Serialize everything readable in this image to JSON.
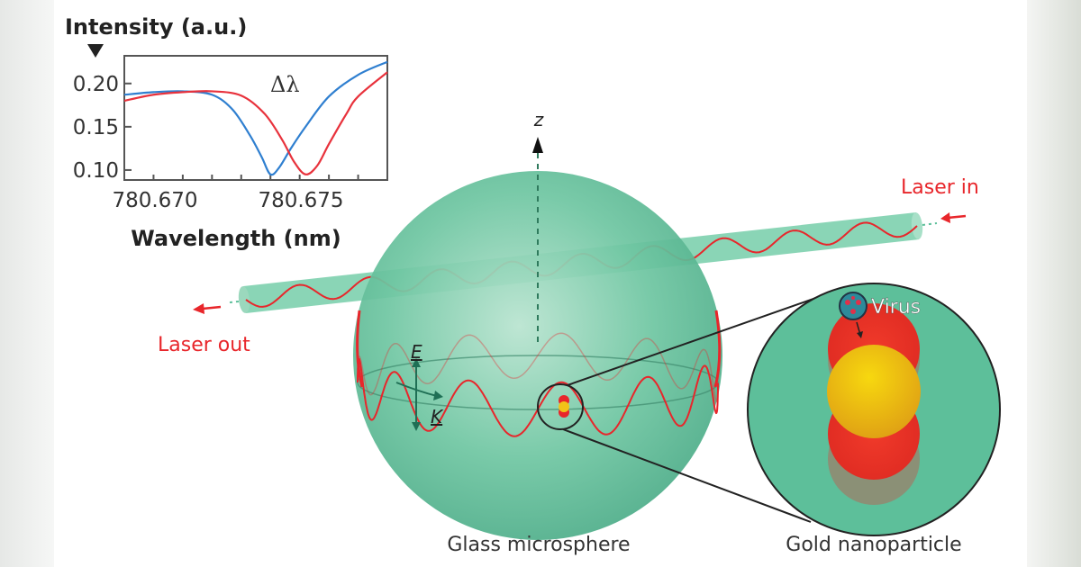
{
  "colors": {
    "sphere": "#5dbf9a",
    "laser": "#e8262b",
    "blue_curve": "#2f7fd0",
    "red_curve": "#e8323c",
    "gold": "#f2c318",
    "text": "#222222"
  },
  "chart_data": {
    "type": "line",
    "ylabel": "Intensity (a.u.)",
    "xlabel": "Wavelength (nm)",
    "annotation": "Δλ",
    "xlim": [
      780.669,
      780.678
    ],
    "ylim": [
      0.0885,
      0.232
    ],
    "x_ticks": [
      780.67,
      780.671,
      780.672,
      780.673,
      780.674,
      780.675,
      780.676,
      780.677
    ],
    "x_tick_labels": [
      "780.670",
      "780.675"
    ],
    "y_ticks": [
      0.1,
      0.15,
      0.2
    ],
    "y_tick_labels": [
      "0.10",
      "0.15",
      "0.20"
    ],
    "grid": false,
    "series": [
      {
        "color": "#2f7fd0",
        "x": [
          780.669,
          780.67,
          780.671,
          780.672,
          780.6727,
          780.6733,
          780.6737,
          780.674,
          780.6743,
          780.6747,
          780.6752,
          780.676,
          780.677,
          780.678
        ],
        "y": [
          0.187,
          0.19,
          0.191,
          0.187,
          0.17,
          0.14,
          0.115,
          0.095,
          0.103,
          0.125,
          0.15,
          0.185,
          0.21,
          0.225
        ]
      },
      {
        "color": "#e8323c",
        "x": [
          780.669,
          780.67,
          780.671,
          780.672,
          780.673,
          780.6738,
          780.6744,
          780.6748,
          780.6752,
          780.6756,
          780.676,
          780.6766,
          780.677,
          780.678
        ],
        "y": [
          0.18,
          0.187,
          0.19,
          0.191,
          0.186,
          0.165,
          0.135,
          0.11,
          0.095,
          0.105,
          0.13,
          0.165,
          0.185,
          0.213
        ]
      }
    ]
  },
  "diagram": {
    "axis_label": "z",
    "laser_in": "Laser in",
    "laser_out": "Laser out",
    "e_label": "E",
    "k_label": "K",
    "virus_label": "Virus",
    "sphere_caption": "Glass microsphere",
    "nanoparticle_caption": "Gold nanoparticle"
  }
}
